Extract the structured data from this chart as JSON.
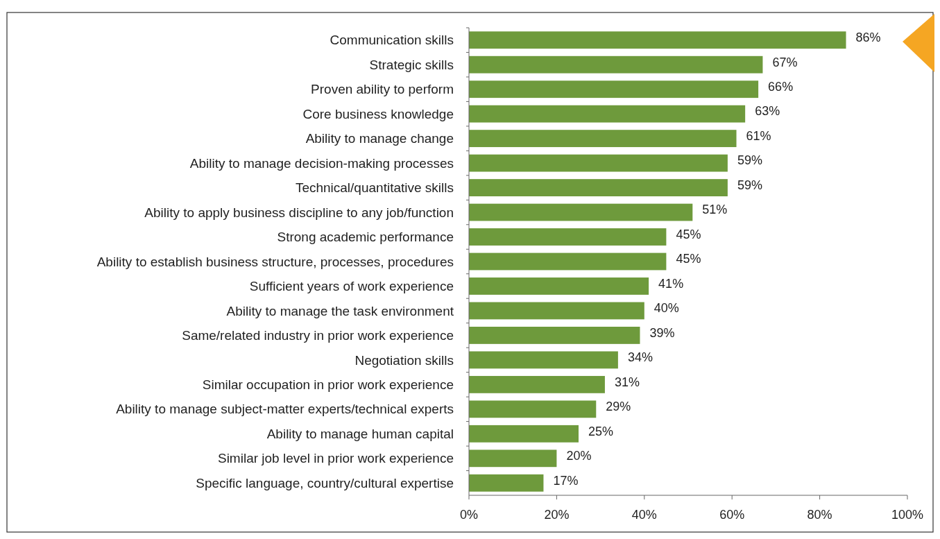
{
  "chart_data": {
    "type": "bar",
    "orientation": "horizontal",
    "categories": [
      "Communication skills",
      "Strategic skills",
      "Proven ability to perform",
      "Core business knowledge",
      "Ability to manage change",
      "Ability to manage decision-making processes",
      "Technical/quantitative skills",
      "Ability to apply business discipline to any job/function",
      "Strong academic performance",
      "Ability to establish business structure, processes, procedures",
      "Sufficient years of work experience",
      "Ability to manage the task environment",
      "Same/related industry in prior work experience",
      "Negotiation skills",
      "Similar occupation in prior work experience",
      "Ability to manage subject-matter experts/technical experts",
      "Ability to manage human capital",
      "Similar job level in prior work experience",
      "Specific language, country/cultural expertise"
    ],
    "values": [
      86,
      67,
      66,
      63,
      61,
      59,
      59,
      51,
      45,
      45,
      41,
      40,
      39,
      34,
      31,
      29,
      25,
      20,
      17
    ],
    "value_labels": [
      "86%",
      "67%",
      "66%",
      "63%",
      "61%",
      "59%",
      "59%",
      "51%",
      "45%",
      "45%",
      "41%",
      "40%",
      "39%",
      "34%",
      "31%",
      "29%",
      "25%",
      "20%",
      "17%"
    ],
    "color": "#6e9a3c",
    "xlim": [
      0,
      100
    ],
    "xticks": [
      {
        "value": 0,
        "label": "0%"
      },
      {
        "value": 20,
        "label": "20%"
      },
      {
        "value": 40,
        "label": "40%"
      },
      {
        "value": 60,
        "label": "60%"
      },
      {
        "value": 80,
        "label": "80%"
      },
      {
        "value": 100,
        "label": "100%"
      }
    ],
    "grid": false
  }
}
